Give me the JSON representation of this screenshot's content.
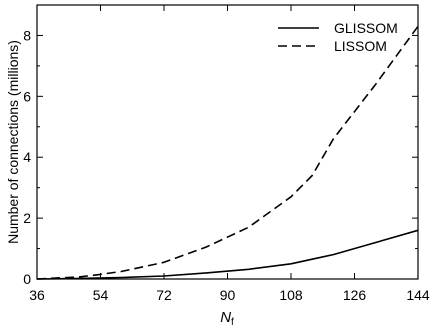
{
  "chart_data": {
    "type": "line",
    "xlabel": "N",
    "xlabel_subscript": "f",
    "ylabel": "Number of connections (millions)",
    "xlim": [
      36,
      144
    ],
    "ylim": [
      0,
      9
    ],
    "xticks": [
      36,
      54,
      72,
      90,
      108,
      126,
      144
    ],
    "yticks": [
      0,
      2,
      4,
      6,
      8
    ],
    "grid": false,
    "legend_position": "top-right",
    "series": [
      {
        "name": "GLISSOM",
        "style": "solid",
        "color": "#000000",
        "x": [
          36,
          48,
          60,
          72,
          84,
          96,
          108,
          114,
          120,
          132,
          144
        ],
        "y": [
          0.0,
          0.02,
          0.05,
          0.1,
          0.2,
          0.32,
          0.5,
          0.65,
          0.8,
          1.2,
          1.6
        ]
      },
      {
        "name": "LISSOM",
        "style": "dashed",
        "color": "#000000",
        "x": [
          36,
          48,
          54,
          60,
          72,
          84,
          96,
          108,
          114,
          120,
          132,
          144
        ],
        "y": [
          0.0,
          0.07,
          0.15,
          0.25,
          0.55,
          1.05,
          1.7,
          2.7,
          3.4,
          4.6,
          6.4,
          8.3
        ]
      }
    ]
  }
}
